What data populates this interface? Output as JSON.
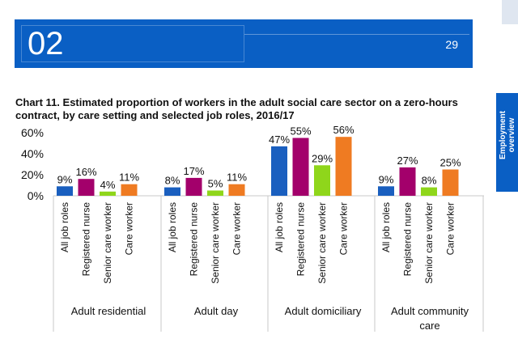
{
  "header": {
    "section_number": "02",
    "page_number": "29"
  },
  "side_tab": {
    "label": "Employment overview"
  },
  "chart_data": {
    "type": "bar",
    "title": "Chart 11. Estimated proportion of workers in the adult social care sector on a zero-hours contract, by care setting and selected job roles, 2016/17",
    "ylim": [
      0,
      60
    ],
    "yticks": [
      "0%",
      "20%",
      "40%",
      "60%"
    ],
    "groups": [
      {
        "name": "Adult residential",
        "values": [
          9,
          16,
          4,
          11
        ],
        "labels": [
          "9%",
          "16%",
          "4%",
          "11%"
        ]
      },
      {
        "name": "Adult day",
        "values": [
          8,
          17,
          5,
          11
        ],
        "labels": [
          "8%",
          "17%",
          "5%",
          "11%"
        ]
      },
      {
        "name": "Adult domiciliary",
        "values": [
          47,
          55,
          29,
          56
        ],
        "labels": [
          "47%",
          "55%",
          "29%",
          "56%"
        ]
      },
      {
        "name": "Adult community care",
        "values": [
          9,
          27,
          8,
          25
        ],
        "labels": [
          "9%",
          "27%",
          "8%",
          "25%"
        ]
      }
    ],
    "roles": [
      "All job roles",
      "Registered nurse",
      "Senior care worker",
      "Care worker"
    ],
    "colors": [
      "#1a5fbf",
      "#a3006b",
      "#8fd61b",
      "#ef7b22"
    ]
  }
}
